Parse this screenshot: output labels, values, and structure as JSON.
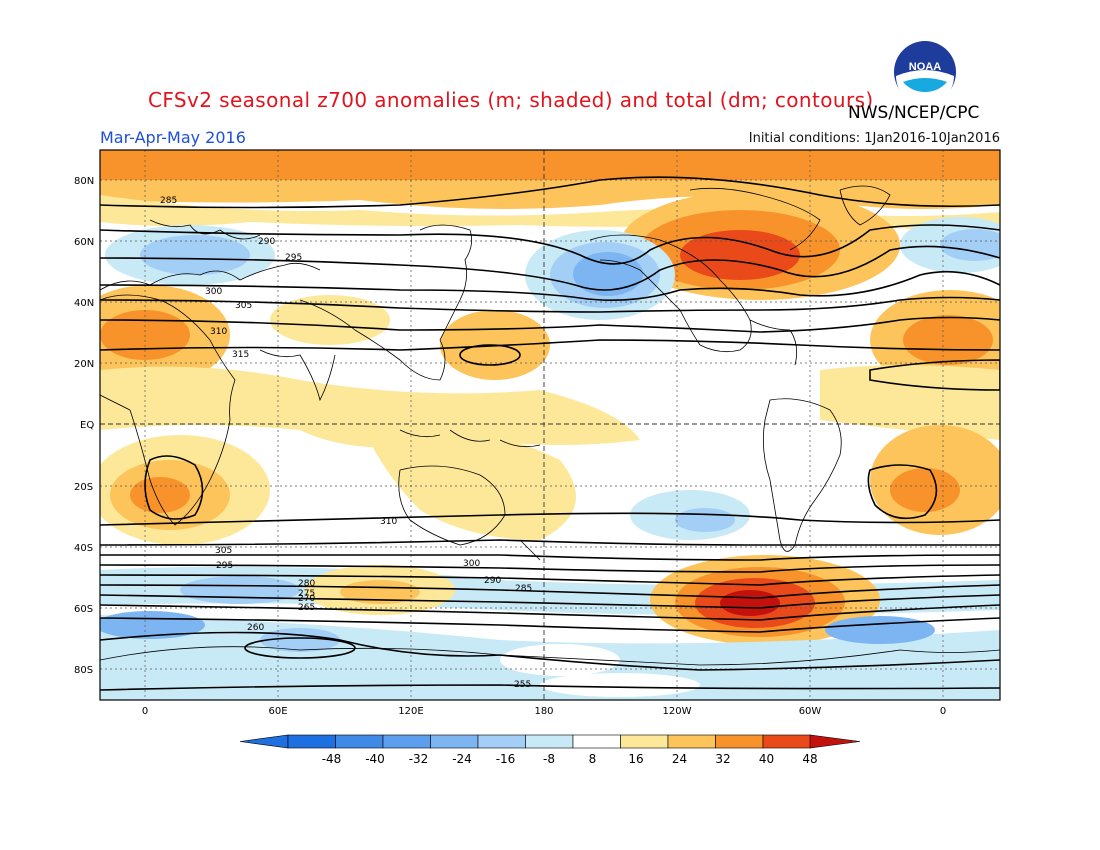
{
  "header": {
    "title": "CFSv2 seasonal z700 anomalies (m; shaded) and total (dm; contours)",
    "agency": "NWS/NCEP/CPC",
    "period": "Mar-Apr-May 2016",
    "initial_conditions": "Initial conditions: 1Jan2016-10Jan2016",
    "logo_text": "NOAA"
  },
  "map": {
    "lat_labels": [
      "80N",
      "60N",
      "40N",
      "20N",
      "EQ",
      "20S",
      "40S",
      "60S",
      "80S"
    ],
    "lon_labels": [
      "0",
      "60E",
      "120E",
      "180",
      "120W",
      "60W",
      "0"
    ],
    "contour_labels": [
      "285",
      "290",
      "295",
      "300",
      "305",
      "310",
      "315",
      "310",
      "305",
      "300",
      "295",
      "290",
      "285",
      "280",
      "275",
      "270",
      "265",
      "260",
      "255"
    ]
  },
  "colorbar": {
    "ticks": [
      "-48",
      "-40",
      "-32",
      "-24",
      "-16",
      "-8",
      "8",
      "16",
      "24",
      "32",
      "40",
      "48"
    ],
    "colors": [
      "#1e6fe0",
      "#3f8ae6",
      "#5d9fec",
      "#7db5f2",
      "#a3cef6",
      "#c8e9f6",
      "#ffffff",
      "#fde89a",
      "#fcc45a",
      "#f8932c",
      "#ea4a1a",
      "#c3120e"
    ]
  }
}
